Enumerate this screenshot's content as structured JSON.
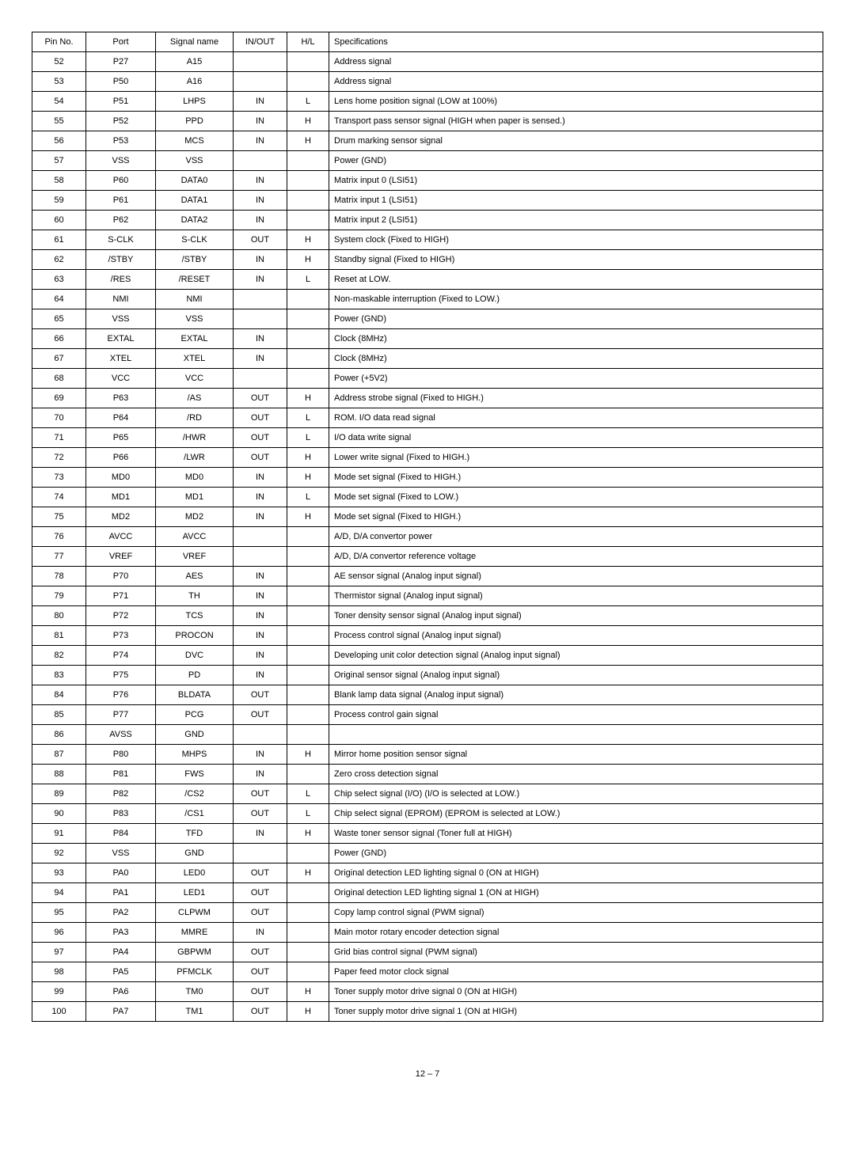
{
  "table": {
    "headers": [
      "Pin No.",
      "Port",
      "Signal name",
      "IN/OUT",
      "H/L",
      "Specifications"
    ],
    "rows": [
      {
        "pin": "52",
        "port": "P27",
        "signal": "A15",
        "inout": "",
        "hl": "",
        "spec": "Address signal"
      },
      {
        "pin": "53",
        "port": "P50",
        "signal": "A16",
        "inout": "",
        "hl": "",
        "spec": "Address signal"
      },
      {
        "pin": "54",
        "port": "P51",
        "signal": "LHPS",
        "inout": "IN",
        "hl": "L",
        "spec": "Lens home position signal (LOW at 100%)"
      },
      {
        "pin": "55",
        "port": "P52",
        "signal": "PPD",
        "inout": "IN",
        "hl": "H",
        "spec": "Transport pass sensor signal (HIGH when paper is sensed.)"
      },
      {
        "pin": "56",
        "port": "P53",
        "signal": "MCS",
        "inout": "IN",
        "hl": "H",
        "spec": "Drum marking sensor signal"
      },
      {
        "pin": "57",
        "port": "VSS",
        "signal": "VSS",
        "inout": "",
        "hl": "",
        "spec": "Power (GND)"
      },
      {
        "pin": "58",
        "port": "P60",
        "signal": "DATA0",
        "inout": "IN",
        "hl": "",
        "spec": "Matrix input 0 (LSI51)"
      },
      {
        "pin": "59",
        "port": "P61",
        "signal": "DATA1",
        "inout": "IN",
        "hl": "",
        "spec": "Matrix input 1 (LSI51)"
      },
      {
        "pin": "60",
        "port": "P62",
        "signal": "DATA2",
        "inout": "IN",
        "hl": "",
        "spec": "Matrix input 2 (LSI51)"
      },
      {
        "pin": "61",
        "port": "S-CLK",
        "signal": "S-CLK",
        "inout": "OUT",
        "hl": "H",
        "spec": "System clock (Fixed to HIGH)"
      },
      {
        "pin": "62",
        "port": "/STBY",
        "signal": "/STBY",
        "inout": "IN",
        "hl": "H",
        "spec": "Standby signal (Fixed to HIGH)"
      },
      {
        "pin": "63",
        "port": "/RES",
        "signal": "/RESET",
        "inout": "IN",
        "hl": "L",
        "spec": "Reset at LOW."
      },
      {
        "pin": "64",
        "port": "NMI",
        "signal": "NMI",
        "inout": "",
        "hl": "",
        "spec": "Non-maskable interruption (Fixed to LOW.)"
      },
      {
        "pin": "65",
        "port": "VSS",
        "signal": "VSS",
        "inout": "",
        "hl": "",
        "spec": "Power (GND)"
      },
      {
        "pin": "66",
        "port": "EXTAL",
        "signal": "EXTAL",
        "inout": "IN",
        "hl": "",
        "spec": "Clock (8MHz)"
      },
      {
        "pin": "67",
        "port": "XTEL",
        "signal": "XTEL",
        "inout": "IN",
        "hl": "",
        "spec": "Clock (8MHz)"
      },
      {
        "pin": "68",
        "port": "VCC",
        "signal": "VCC",
        "inout": "",
        "hl": "",
        "spec": "Power (+5V2)"
      },
      {
        "pin": "69",
        "port": "P63",
        "signal": "/AS",
        "inout": "OUT",
        "hl": "H",
        "spec": "Address strobe signal (Fixed to HIGH.)"
      },
      {
        "pin": "70",
        "port": "P64",
        "signal": "/RD",
        "inout": "OUT",
        "hl": "L",
        "spec": "ROM. I/O data read signal"
      },
      {
        "pin": "71",
        "port": "P65",
        "signal": "/HWR",
        "inout": "OUT",
        "hl": "L",
        "spec": "I/O data write signal"
      },
      {
        "pin": "72",
        "port": "P66",
        "signal": "/LWR",
        "inout": "OUT",
        "hl": "H",
        "spec": "Lower write signal (Fixed to HIGH.)"
      },
      {
        "pin": "73",
        "port": "MD0",
        "signal": "MD0",
        "inout": "IN",
        "hl": "H",
        "spec": "Mode set signal (Fixed to HIGH.)"
      },
      {
        "pin": "74",
        "port": "MD1",
        "signal": "MD1",
        "inout": "IN",
        "hl": "L",
        "spec": "Mode set signal (Fixed to LOW.)"
      },
      {
        "pin": "75",
        "port": "MD2",
        "signal": "MD2",
        "inout": "IN",
        "hl": "H",
        "spec": "Mode set signal (Fixed to HIGH.)"
      },
      {
        "pin": "76",
        "port": "AVCC",
        "signal": "AVCC",
        "inout": "",
        "hl": "",
        "spec": "A/D, D/A convertor power"
      },
      {
        "pin": "77",
        "port": "VREF",
        "signal": "VREF",
        "inout": "",
        "hl": "",
        "spec": "A/D, D/A convertor reference voltage"
      },
      {
        "pin": "78",
        "port": "P70",
        "signal": "AES",
        "inout": "IN",
        "hl": "",
        "spec": "AE sensor signal (Analog input signal)"
      },
      {
        "pin": "79",
        "port": "P71",
        "signal": "TH",
        "inout": "IN",
        "hl": "",
        "spec": "Thermistor signal (Analog input signal)"
      },
      {
        "pin": "80",
        "port": "P72",
        "signal": "TCS",
        "inout": "IN",
        "hl": "",
        "spec": "Toner density sensor signal (Analog input signal)"
      },
      {
        "pin": "81",
        "port": "P73",
        "signal": "PROCON",
        "inout": "IN",
        "hl": "",
        "spec": "Process control signal (Analog input signal)"
      },
      {
        "pin": "82",
        "port": "P74",
        "signal": "DVC",
        "inout": "IN",
        "hl": "",
        "spec": "Developing unit color detection signal (Analog input signal)"
      },
      {
        "pin": "83",
        "port": "P75",
        "signal": "PD",
        "inout": "IN",
        "hl": "",
        "spec": "Original sensor signal (Analog input signal)"
      },
      {
        "pin": "84",
        "port": "P76",
        "signal": "BLDATA",
        "inout": "OUT",
        "hl": "",
        "spec": "Blank lamp data signal (Analog input signal)"
      },
      {
        "pin": "85",
        "port": "P77",
        "signal": "PCG",
        "inout": "OUT",
        "hl": "",
        "spec": "Process control gain signal"
      },
      {
        "pin": "86",
        "port": "AVSS",
        "signal": "GND",
        "inout": "",
        "hl": "",
        "spec": ""
      },
      {
        "pin": "87",
        "port": "P80",
        "signal": "MHPS",
        "inout": "IN",
        "hl": "H",
        "spec": "Mirror home position sensor signal"
      },
      {
        "pin": "88",
        "port": "P81",
        "signal": "FWS",
        "inout": "IN",
        "hl": "",
        "spec": "Zero cross detection signal"
      },
      {
        "pin": "89",
        "port": "P82",
        "signal": "/CS2",
        "inout": "OUT",
        "hl": "L",
        "spec": "Chip select signal (I/O) (I/O is selected at LOW.)"
      },
      {
        "pin": "90",
        "port": "P83",
        "signal": "/CS1",
        "inout": "OUT",
        "hl": "L",
        "spec": "Chip select signal (EPROM) (EPROM is selected at LOW.)"
      },
      {
        "pin": "91",
        "port": "P84",
        "signal": "TFD",
        "inout": "IN",
        "hl": "H",
        "spec": "Waste toner sensor signal (Toner full at HIGH)"
      },
      {
        "pin": "92",
        "port": "VSS",
        "signal": "GND",
        "inout": "",
        "hl": "",
        "spec": "Power (GND)"
      },
      {
        "pin": "93",
        "port": "PA0",
        "signal": "LED0",
        "inout": "OUT",
        "hl": "H",
        "spec": "Original detection LED lighting signal 0 (ON at HIGH)"
      },
      {
        "pin": "94",
        "port": "PA1",
        "signal": "LED1",
        "inout": "OUT",
        "hl": "",
        "spec": "Original detection LED lighting signal 1 (ON at HIGH)"
      },
      {
        "pin": "95",
        "port": "PA2",
        "signal": "CLPWM",
        "inout": "OUT",
        "hl": "",
        "spec": "Copy lamp control signal (PWM signal)"
      },
      {
        "pin": "96",
        "port": "PA3",
        "signal": "MMRE",
        "inout": "IN",
        "hl": "",
        "spec": "Main motor rotary encoder detection signal"
      },
      {
        "pin": "97",
        "port": "PA4",
        "signal": "GBPWM",
        "inout": "OUT",
        "hl": "",
        "spec": "Grid bias control signal (PWM signal)"
      },
      {
        "pin": "98",
        "port": "PA5",
        "signal": "PFMCLK",
        "inout": "OUT",
        "hl": "",
        "spec": "Paper feed motor clock signal"
      },
      {
        "pin": "99",
        "port": "PA6",
        "signal": "TM0",
        "inout": "OUT",
        "hl": "H",
        "spec": "Toner supply motor drive signal 0 (ON at HIGH)"
      },
      {
        "pin": "100",
        "port": "PA7",
        "signal": "TM1",
        "inout": "OUT",
        "hl": "H",
        "spec": "Toner supply motor drive signal 1 (ON at HIGH)"
      }
    ]
  },
  "pageNumber": "12 – 7"
}
